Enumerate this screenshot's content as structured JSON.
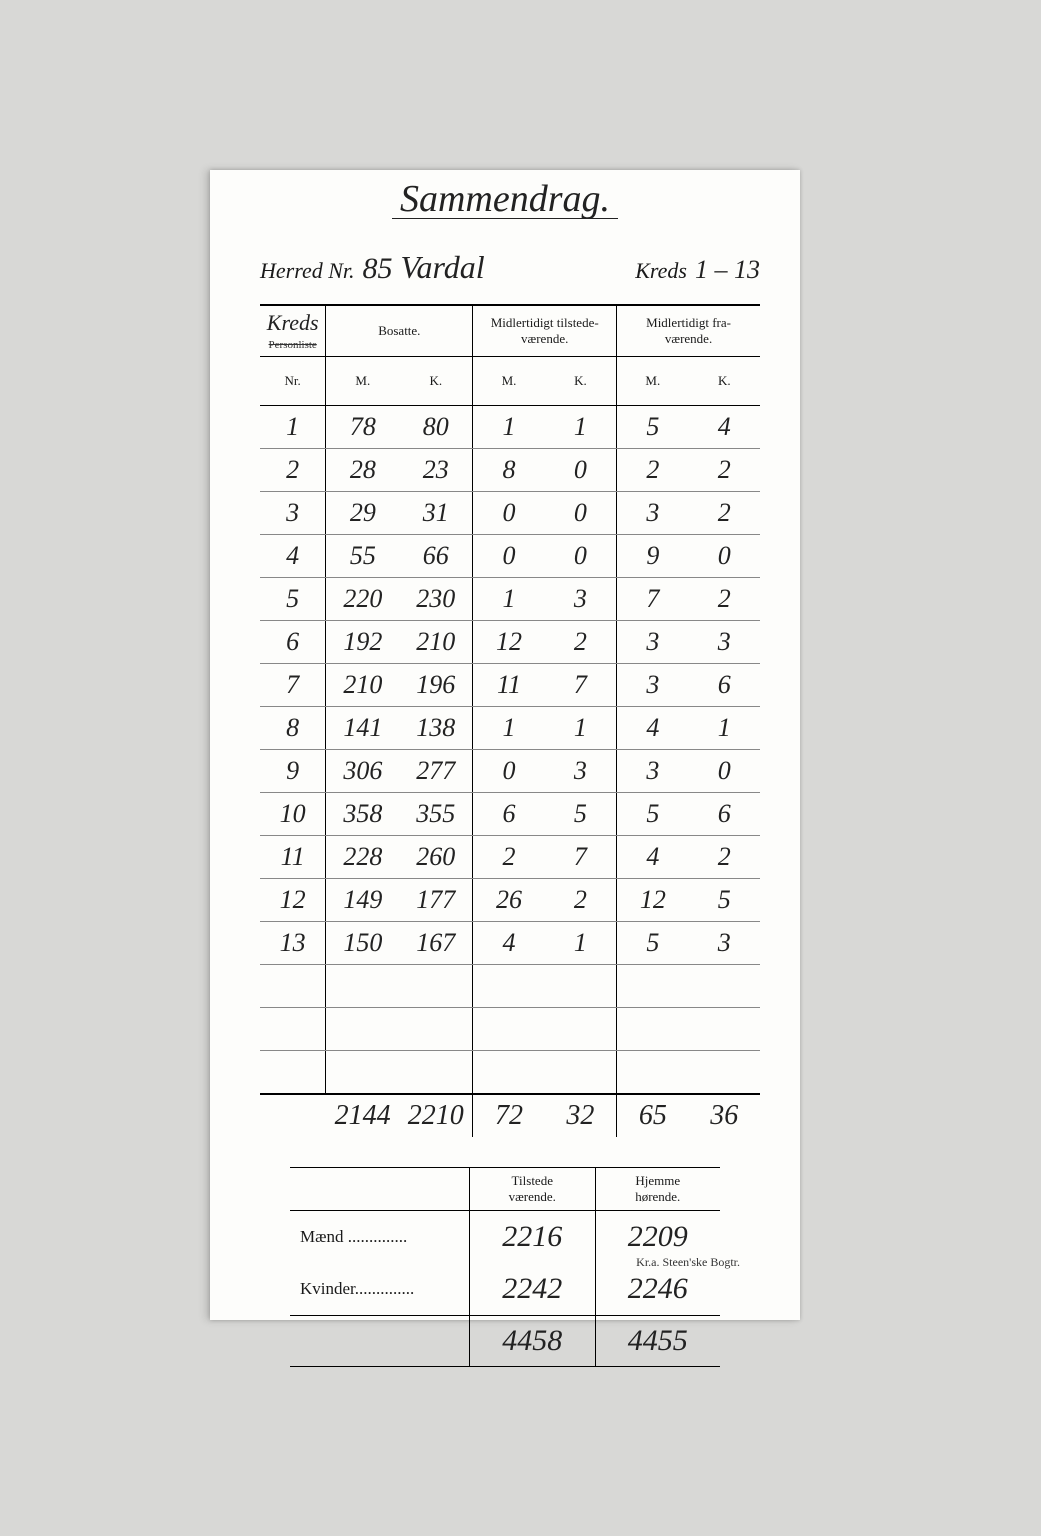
{
  "title": "Sammendrag.",
  "header": {
    "herred_label": "Herred Nr.",
    "herred_nr": "85",
    "herred_name": "Vardal",
    "kreds_label": "Kreds",
    "kreds_range": "1 – 13"
  },
  "main_table": {
    "corner_hand": "Kreds",
    "corner_strike": "Personliste",
    "group_headers": [
      "Bosatte.",
      "Midlertidigt tilstede-\nværende.",
      "Midlertidigt fra-\nværende."
    ],
    "sub_headers": [
      "Nr.",
      "M.",
      "K.",
      "M.",
      "K.",
      "M.",
      "K."
    ],
    "rows": [
      {
        "nr": "1",
        "bm": "78",
        "bk": "80",
        "tm": "1",
        "tk": "1",
        "fm": "5",
        "fk": "4"
      },
      {
        "nr": "2",
        "bm": "28",
        "bk": "23",
        "tm": "8",
        "tk": "0",
        "fm": "2",
        "fk": "2"
      },
      {
        "nr": "3",
        "bm": "29",
        "bk": "31",
        "tm": "0",
        "tk": "0",
        "fm": "3",
        "fk": "2"
      },
      {
        "nr": "4",
        "bm": "55",
        "bk": "66",
        "tm": "0",
        "tk": "0",
        "fm": "9",
        "fk": "0"
      },
      {
        "nr": "5",
        "bm": "220",
        "bk": "230",
        "tm": "1",
        "tk": "3",
        "fm": "7",
        "fk": "2"
      },
      {
        "nr": "6",
        "bm": "192",
        "bk": "210",
        "tm": "12",
        "tk": "2",
        "fm": "3",
        "fk": "3"
      },
      {
        "nr": "7",
        "bm": "210",
        "bk": "196",
        "tm": "11",
        "tk": "7",
        "fm": "3",
        "fk": "6"
      },
      {
        "nr": "8",
        "bm": "141",
        "bk": "138",
        "tm": "1",
        "tk": "1",
        "fm": "4",
        "fk": "1"
      },
      {
        "nr": "9",
        "bm": "306",
        "bk": "277",
        "tm": "0",
        "tk": "3",
        "fm": "3",
        "fk": "0"
      },
      {
        "nr": "10",
        "bm": "358",
        "bk": "355",
        "tm": "6",
        "tk": "5",
        "fm": "5",
        "fk": "6"
      },
      {
        "nr": "11",
        "bm": "228",
        "bk": "260",
        "tm": "2",
        "tk": "7",
        "fm": "4",
        "fk": "2"
      },
      {
        "nr": "12",
        "bm": "149",
        "bk": "177",
        "tm": "26",
        "tk": "2",
        "fm": "12",
        "fk": "5"
      },
      {
        "nr": "13",
        "bm": "150",
        "bk": "167",
        "tm": "4",
        "tk": "1",
        "fm": "5",
        "fk": "3"
      }
    ],
    "blank_rows": 3,
    "totals": {
      "bm": "2144",
      "bk": "2210",
      "tm": "72",
      "tk": "32",
      "fm": "65",
      "fk": "36"
    }
  },
  "summary_table": {
    "headers": [
      "Tilstede\nværende.",
      "Hjemme\nhørende."
    ],
    "rows": [
      {
        "label": "Mænd",
        "dots": " ..............",
        "tv": "2216",
        "hh": "2209"
      },
      {
        "label": "Kvinder",
        "dots": "..............",
        "tv": "2242",
        "hh": "2246"
      }
    ],
    "totals": {
      "tv": "4458",
      "hh": "4455"
    }
  },
  "footer": "Kr.a. Steen'ske Bogtr.",
  "style": {
    "page_bg": "#fdfdfb",
    "body_bg": "#d8d8d6",
    "ink": "#1a1a1a",
    "hand_fontsize": 26,
    "printed_fontsize": 13
  }
}
